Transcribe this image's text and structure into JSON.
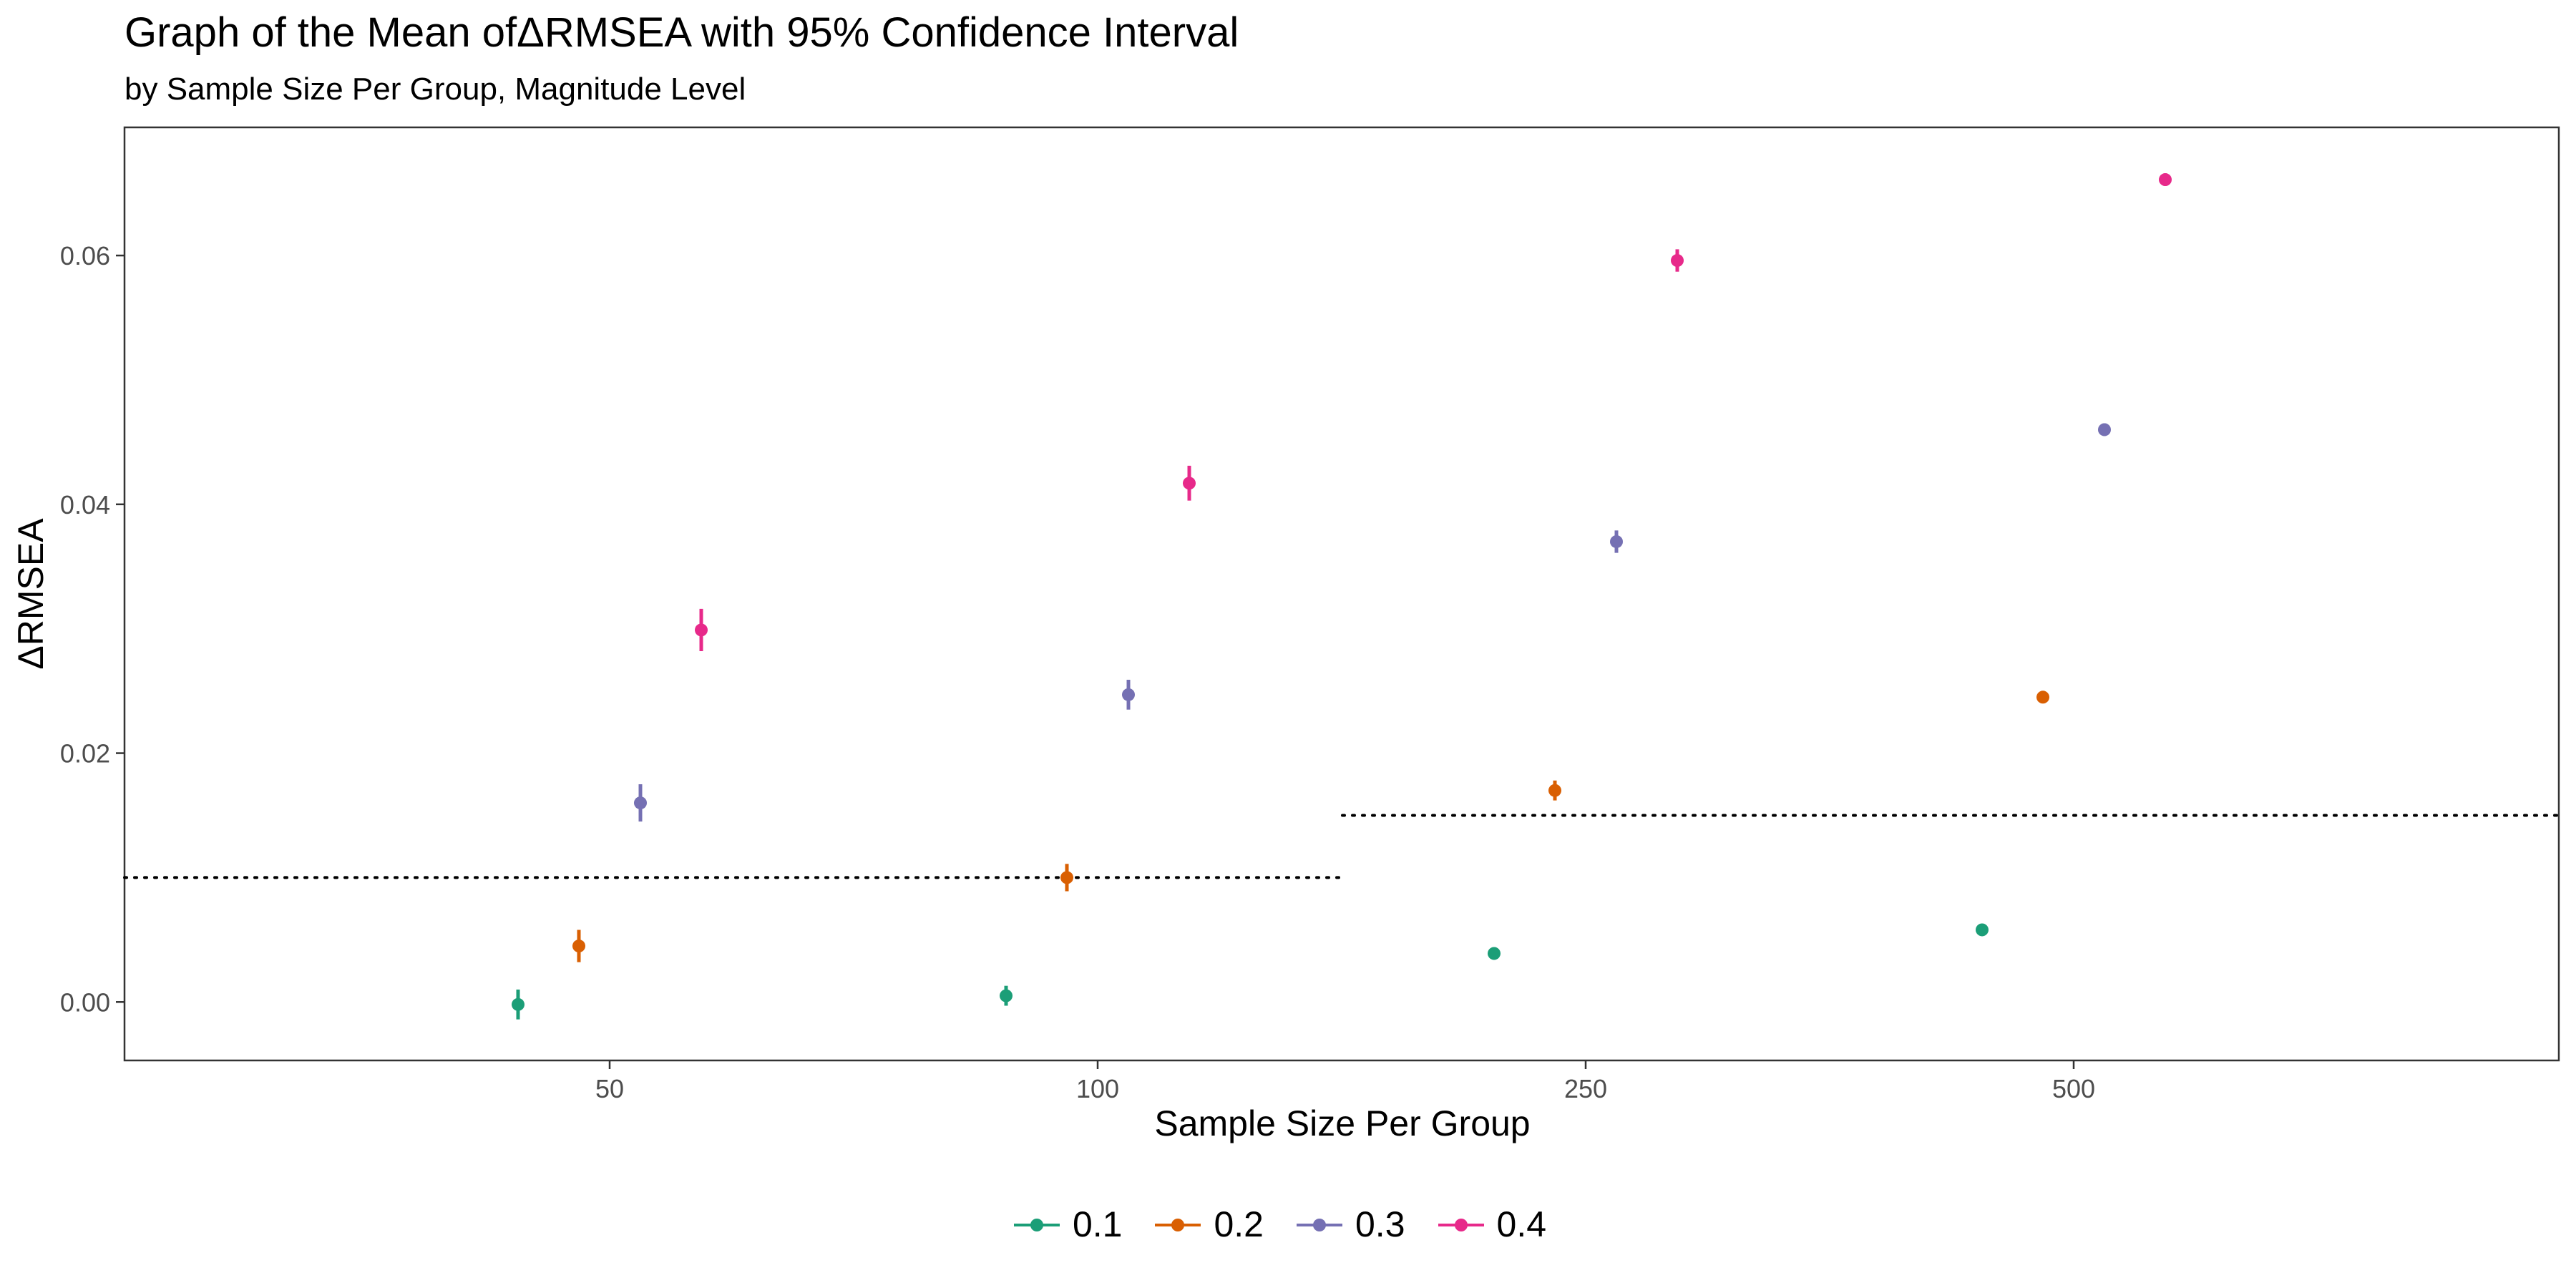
{
  "chart_data": {
    "type": "scatter",
    "title": "Graph of the Mean ofΔRMSEA with 95% Confidence Interval",
    "subtitle": "by Sample Size Per Group, Magnitude Level",
    "xlabel": "Sample Size Per Group",
    "ylabel": "ΔRMSEA",
    "x_scale": "categorical (dodged by magnitude level)",
    "categories": [
      "50",
      "100",
      "250",
      "500"
    ],
    "ylim": [
      -0.0047,
      0.0703
    ],
    "y_ticks": [
      0.0,
      0.02,
      0.04,
      0.06
    ],
    "y_tick_labels": [
      "0.00",
      "0.02",
      "0.04",
      "0.06"
    ],
    "grid": false,
    "legend_position": "bottom",
    "series": [
      {
        "name": "0.1",
        "color": "#1B9E77",
        "mean": [
          -0.0002,
          0.0005,
          0.0039,
          0.0058
        ],
        "ci_low": [
          -0.0014,
          -0.0003,
          0.0034,
          0.0054
        ],
        "ci_high": [
          0.001,
          0.0013,
          0.0044,
          0.0062
        ]
      },
      {
        "name": "0.2",
        "color": "#D95F02",
        "mean": [
          0.0045,
          0.01,
          0.017,
          0.0245
        ],
        "ci_low": [
          0.0032,
          0.0089,
          0.0162,
          0.024
        ],
        "ci_high": [
          0.0058,
          0.0111,
          0.0178,
          0.025
        ]
      },
      {
        "name": "0.3",
        "color": "#7570B3",
        "mean": [
          0.016,
          0.0247,
          0.037,
          0.046
        ],
        "ci_low": [
          0.0145,
          0.0235,
          0.0361,
          0.0455
        ],
        "ci_high": [
          0.0175,
          0.0259,
          0.0379,
          0.0465
        ]
      },
      {
        "name": "0.4",
        "color": "#E7298A",
        "mean": [
          0.0299,
          0.0417,
          0.0596,
          0.0661
        ],
        "ci_low": [
          0.0282,
          0.0403,
          0.0587,
          0.0656
        ],
        "ci_high": [
          0.0316,
          0.0431,
          0.0605,
          0.0666
        ]
      }
    ],
    "reference_lines": [
      {
        "style": "dotted",
        "y": 0.01,
        "x_range": [
          "50",
          "100"
        ]
      },
      {
        "style": "dotted",
        "y": 0.015,
        "x_range": [
          "250",
          "500"
        ]
      }
    ]
  }
}
